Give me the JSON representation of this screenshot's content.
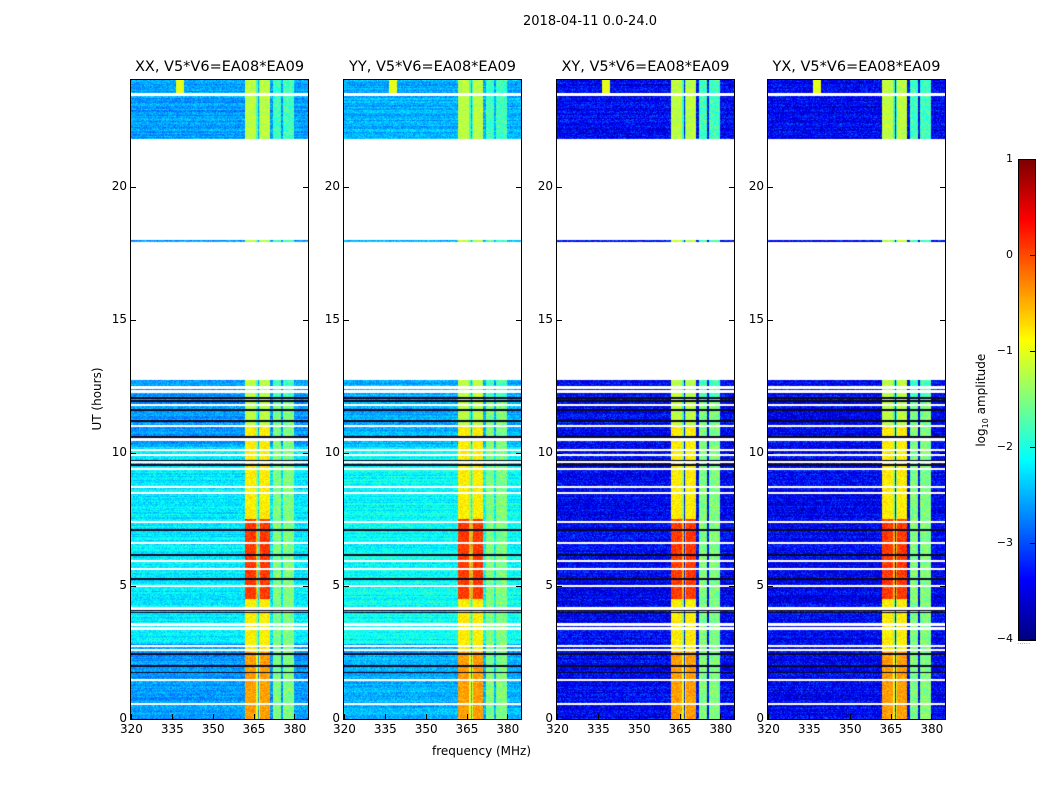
{
  "chart_data": {
    "type": "heatmap",
    "title": "2018-04-11 0.0-24.0",
    "xlabel": "frequency (MHz)",
    "ylabel": "UT (hours)",
    "xlim": [
      320,
      385
    ],
    "ylim": [
      0,
      24
    ],
    "xticks": [
      320,
      335,
      350,
      365,
      380
    ],
    "yticks": [
      0,
      5,
      10,
      15,
      20
    ],
    "panels": [
      {
        "title": "XX, V5*V6=EA08*EA09",
        "pol": "XX",
        "background_log_amp": -2.6
      },
      {
        "title": "YY, V5*V6=EA08*EA09",
        "pol": "YY",
        "background_log_amp": -2.5
      },
      {
        "title": "XY, V5*V6=EA08*EA09",
        "pol": "XY",
        "background_log_amp": -3.3
      },
      {
        "title": "YX, V5*V6=EA08*EA09",
        "pol": "YX",
        "background_log_amp": -3.3
      }
    ],
    "data_time_ranges_hours": [
      [
        0,
        12.75
      ],
      [
        17.9,
        18.0
      ],
      [
        21.8,
        23.4
      ],
      [
        23.5,
        24.0
      ]
    ],
    "bright_channels_mhz": [
      [
        362,
        366.5
      ],
      [
        367,
        371
      ],
      [
        372,
        375
      ],
      [
        376,
        380
      ]
    ],
    "colorbar": {
      "colormap": "jet",
      "range": [
        -4,
        1
      ],
      "ticks": [
        "1",
        "0",
        "−1",
        "−2",
        "−3",
        "−4"
      ],
      "tick_values": [
        1,
        0,
        -1,
        -2,
        -3,
        -4
      ],
      "label_main": "log",
      "label_sub": "10",
      "label_rest": " amplitude",
      "footer": "......"
    }
  }
}
